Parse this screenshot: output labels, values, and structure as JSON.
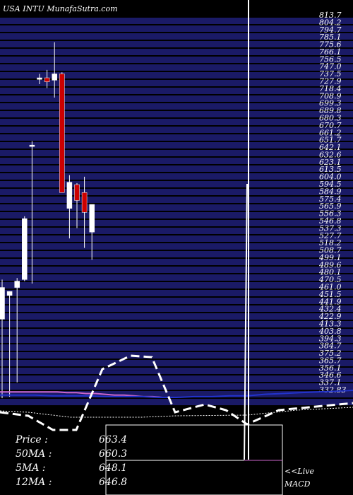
{
  "header": {
    "title": "USA INTU MunafaSutra.com"
  },
  "info": {
    "price_label": "Price",
    "price": "663.4",
    "ma50_label": "50MA",
    "ma50": "660.3",
    "ma5_label": "5MA",
    "ma5": "648.1",
    "ma12_label": "12MA",
    "ma12": "646.8"
  },
  "footer": {
    "live": "<<Live",
    "macd": "MACD"
  },
  "colors": {
    "background": "#000000",
    "band": "#1a1a66",
    "up": "#ffffff",
    "down": "#cc0000",
    "ma_pink": "#cc66cc",
    "ma_blue": "#2233cc"
  },
  "chart_data": {
    "type": "candlestick",
    "title": "USA INTU MunafaSutra.com",
    "y_tick_labels": [
      "813.7",
      "804.2",
      "794.7",
      "785.1",
      "775.6",
      "766.1",
      "756.5",
      "747.0",
      "737.5",
      "727.9",
      "718.4",
      "708.9",
      "699.3",
      "689.8",
      "680.3",
      "670.7",
      "661.2",
      "651.7",
      "642.1",
      "632.6",
      "623.1",
      "613.5",
      "604.0",
      "594.5",
      "584.9",
      "575.4",
      "565.9",
      "556.3",
      "546.8",
      "537.3",
      "527.7",
      "518.2",
      "508.7",
      "499.1",
      "489.6",
      "480.1",
      "470.5",
      "461.0",
      "451.5",
      "441.9",
      "432.4",
      "422.9",
      "413.3",
      "403.8",
      "394.3",
      "384.7",
      "375.2",
      "365.7",
      "356.1",
      "346.6",
      "337.1",
      "332.83"
    ],
    "candles": [
      {
        "o": 430,
        "h": 480,
        "l": 330,
        "c": 470
      },
      {
        "o": 460,
        "h": 465,
        "l": 332,
        "c": 465
      },
      {
        "o": 470,
        "h": 482,
        "l": 350,
        "c": 478
      },
      {
        "o": 480,
        "h": 560,
        "l": 478,
        "c": 557
      },
      {
        "o": 650,
        "h": 655,
        "l": 475,
        "c": 650
      },
      {
        "o": 733,
        "h": 740,
        "l": 727,
        "c": 735
      },
      {
        "o": 735,
        "h": 745,
        "l": 722,
        "c": 730
      },
      {
        "o": 732,
        "h": 780,
        "l": 710,
        "c": 740
      },
      {
        "o": 740,
        "h": 742,
        "l": 590,
        "c": 590
      },
      {
        "o": 570,
        "h": 612,
        "l": 532,
        "c": 603
      },
      {
        "o": 600,
        "h": 602,
        "l": 545,
        "c": 580
      },
      {
        "o": 590,
        "h": 610,
        "l": 520,
        "c": 565
      },
      {
        "o": 540,
        "h": 575,
        "l": 505,
        "c": 575
      }
    ],
    "ma_pink": [
      338,
      338,
      338,
      338,
      338,
      338,
      338,
      337,
      337,
      336,
      336,
      335,
      334,
      334,
      333,
      332,
      332,
      331
    ],
    "ma_blue": [
      334,
      334,
      334,
      333,
      333,
      333,
      332,
      332,
      332,
      331,
      331,
      332,
      332,
      333,
      333,
      335,
      336,
      337,
      338,
      339,
      340
    ]
  }
}
